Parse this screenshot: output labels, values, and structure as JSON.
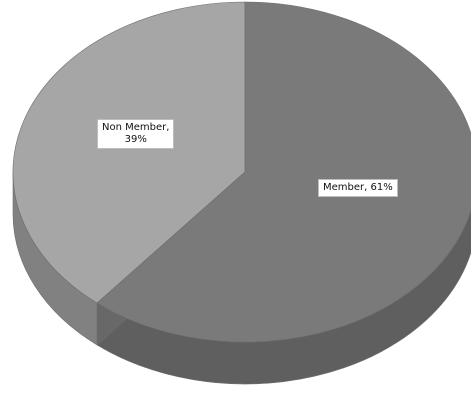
{
  "chart_data": {
    "type": "pie",
    "variant": "3d",
    "slices": [
      {
        "name": "Member",
        "value": 61,
        "label": "Member, 61%",
        "color": "#7a7a7a"
      },
      {
        "name": "Non Member",
        "value": 39,
        "label_line1": "Non Member,",
        "label_line2": "39%",
        "color": "#a6a6a6"
      }
    ],
    "title": "",
    "legend": "none",
    "data_labels": "name and percent"
  }
}
